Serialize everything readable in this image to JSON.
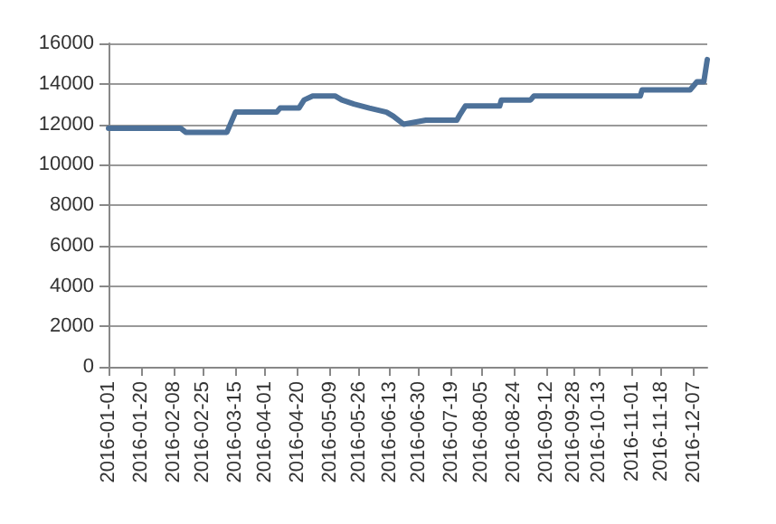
{
  "chart_data": {
    "type": "line",
    "x": [
      "2016-01-01",
      "2016-02-12",
      "2016-02-15",
      "2016-03-10",
      "2016-03-15",
      "2016-04-08",
      "2016-04-10",
      "2016-04-21",
      "2016-04-24",
      "2016-04-29",
      "2016-05-12",
      "2016-05-16",
      "2016-05-23",
      "2016-06-01",
      "2016-06-11",
      "2016-06-15",
      "2016-06-21",
      "2016-07-04",
      "2016-07-22",
      "2016-07-24",
      "2016-07-27",
      "2016-08-16",
      "2016-08-17",
      "2016-09-03",
      "2016-09-05",
      "2016-11-06",
      "2016-11-07",
      "2016-12-05",
      "2016-12-09",
      "2016-12-13",
      "2016-12-15"
    ],
    "series": [
      {
        "color": "#4d7199",
        "values": [
          11800,
          11800,
          11600,
          11600,
          12600,
          12600,
          12800,
          12800,
          13200,
          13400,
          13400,
          13200,
          13000,
          12800,
          12600,
          12400,
          12000,
          12200,
          12200,
          12500,
          12900,
          12900,
          13200,
          13200,
          13400,
          13400,
          13700,
          13700,
          14100,
          14100,
          15200
        ]
      }
    ],
    "xlim": [
      "2016-01-01",
      "2016-12-15"
    ],
    "xticks": [
      "2016-01-01",
      "2016-01-20",
      "2016-02-08",
      "2016-02-25",
      "2016-03-15",
      "2016-04-01",
      "2016-04-20",
      "2016-05-09",
      "2016-05-26",
      "2016-06-13",
      "2016-06-30",
      "2016-07-19",
      "2016-08-05",
      "2016-08-24",
      "2016-09-12",
      "2016-09-28",
      "2016-10-13",
      "2016-11-01",
      "2016-11-18",
      "2016-12-07"
    ],
    "ylim": [
      0,
      16000
    ],
    "yticks": [
      0,
      2000,
      4000,
      6000,
      8000,
      10000,
      12000,
      14000,
      16000
    ],
    "grid": "y",
    "marker": "none",
    "line_style": "solid"
  }
}
